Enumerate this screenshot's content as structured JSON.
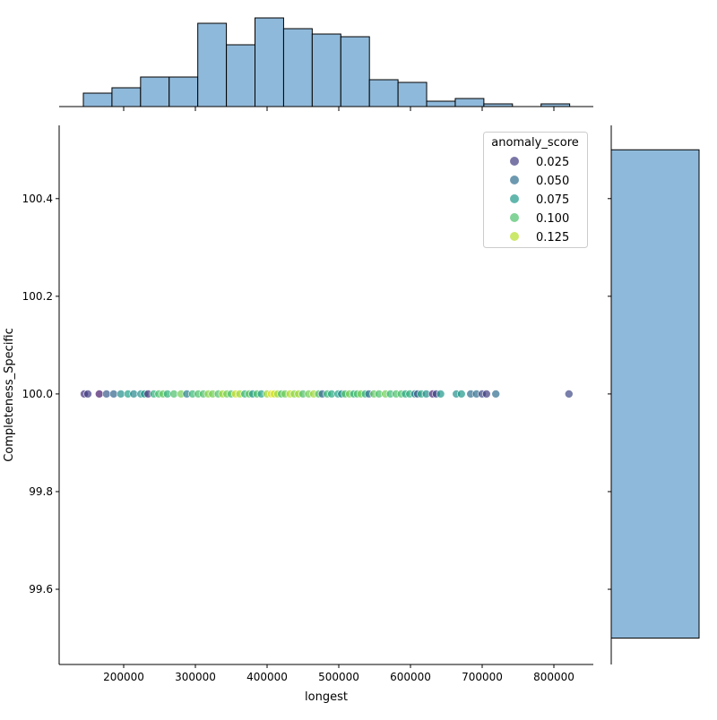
{
  "chart_data": [
    {
      "type": "scatter",
      "xlabel": "longest",
      "ylabel": "Completeness_Specific",
      "xlim": [
        110000,
        855000
      ],
      "ylim": [
        99.446,
        100.55
      ],
      "x_ticks": [
        "200000",
        "300000",
        "400000",
        "500000",
        "600000",
        "700000",
        "800000"
      ],
      "y_ticks": [
        "99.6",
        "99.8",
        "100.0",
        "100.2",
        "100.4"
      ],
      "grid": false,
      "hue": "anomaly_score",
      "palette": "viridis",
      "legend": {
        "title": "anomaly_score",
        "placement": "top-right",
        "entries": [
          "0.025",
          "0.050",
          "0.075",
          "0.100",
          "0.125"
        ]
      },
      "points": [
        [
          145000,
          0.02
        ],
        [
          150000,
          0.025
        ],
        [
          166000,
          0.01
        ],
        [
          176000,
          0.04
        ],
        [
          186000,
          0.045
        ],
        [
          196000,
          0.07
        ],
        [
          206000,
          0.08
        ],
        [
          214000,
          0.065
        ],
        [
          224000,
          0.07
        ],
        [
          229000,
          0.075
        ],
        [
          234000,
          0.02
        ],
        [
          242000,
          0.09
        ],
        [
          249000,
          0.1
        ],
        [
          255000,
          0.105
        ],
        [
          261000,
          0.09
        ],
        [
          270000,
          0.1
        ],
        [
          280000,
          0.11
        ],
        [
          288000,
          0.06
        ],
        [
          296000,
          0.095
        ],
        [
          304000,
          0.1
        ],
        [
          311000,
          0.1
        ],
        [
          318000,
          0.115
        ],
        [
          324000,
          0.11
        ],
        [
          332000,
          0.1
        ],
        [
          338000,
          0.12
        ],
        [
          344000,
          0.11
        ],
        [
          350000,
          0.1
        ],
        [
          356000,
          0.13
        ],
        [
          362000,
          0.12
        ],
        [
          369000,
          0.09
        ],
        [
          375000,
          0.105
        ],
        [
          380000,
          0.075
        ],
        [
          386000,
          0.1
        ],
        [
          392000,
          0.08
        ],
        [
          400000,
          0.12
        ],
        [
          406000,
          0.135
        ],
        [
          410000,
          0.13
        ],
        [
          415000,
          0.12
        ],
        [
          420000,
          0.1
        ],
        [
          425000,
          0.11
        ],
        [
          432000,
          0.125
        ],
        [
          438000,
          0.115
        ],
        [
          444000,
          0.12
        ],
        [
          450000,
          0.1
        ],
        [
          458000,
          0.11
        ],
        [
          465000,
          0.12
        ],
        [
          472000,
          0.1
        ],
        [
          477000,
          0.045
        ],
        [
          484000,
          0.095
        ],
        [
          490000,
          0.085
        ],
        [
          499000,
          0.08
        ],
        [
          504000,
          0.065
        ],
        [
          509000,
          0.1
        ],
        [
          515000,
          0.11
        ],
        [
          521000,
          0.09
        ],
        [
          526000,
          0.1
        ],
        [
          531000,
          0.11
        ],
        [
          537000,
          0.09
        ],
        [
          542000,
          0.05
        ],
        [
          549000,
          0.105
        ],
        [
          556000,
          0.1
        ],
        [
          565000,
          0.11
        ],
        [
          572000,
          0.095
        ],
        [
          580000,
          0.1
        ],
        [
          587000,
          0.1
        ],
        [
          593000,
          0.085
        ],
        [
          599000,
          0.09
        ],
        [
          606000,
          0.06
        ],
        [
          610000,
          0.04
        ],
        [
          615000,
          0.085
        ],
        [
          622000,
          0.07
        ],
        [
          631000,
          0.015
        ],
        [
          636000,
          0.03
        ],
        [
          642000,
          0.075
        ],
        [
          664000,
          0.07
        ],
        [
          671000,
          0.075
        ],
        [
          684000,
          0.05
        ],
        [
          692000,
          0.05
        ],
        [
          700000,
          0.03
        ],
        [
          706000,
          0.025
        ],
        [
          719000,
          0.05
        ],
        [
          821000,
          0.03
        ]
      ]
    },
    {
      "type": "bar",
      "role": "top-marginal-histogram",
      "bin_edges": [
        143750,
        183650,
        223550,
        263450,
        303350,
        343250,
        383150,
        423050,
        462950,
        502850,
        542750,
        582650,
        622550,
        662450,
        702350,
        742250,
        782150,
        822050
      ],
      "counts": [
        5,
        7,
        11,
        11,
        31,
        23,
        33,
        29,
        27,
        26,
        10,
        9,
        2,
        3,
        1,
        0,
        1
      ],
      "kde": true
    },
    {
      "type": "bar",
      "role": "right-marginal-histogram",
      "bin_edges": [
        99.5,
        100.5
      ],
      "counts": [
        1
      ]
    }
  ],
  "colors": {
    "bar_fill": "#8fb9da",
    "kde_line": "#1f77b4"
  }
}
